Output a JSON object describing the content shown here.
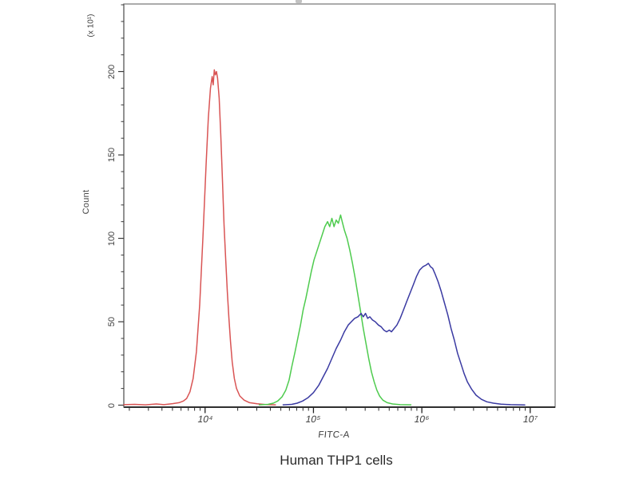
{
  "figure_caption": "Human THP1 cells",
  "chart_data": {
    "type": "line",
    "subtype": "flow-cytometry-histogram-overlay",
    "title": "Human THP1 cells",
    "xlabel": "FITC-A",
    "ylabel": "Count",
    "y_axis_multiplier": "(x 10¹)",
    "x_scale": "log10",
    "x_range_log10": [
      3.25,
      7.23
    ],
    "y_range": [
      0,
      240
    ],
    "grid": false,
    "legend": "none",
    "frame_color": "#8f8f8f",
    "axis_color": "#1a1a1a",
    "x_tick_labels": [
      "10⁴",
      "10⁵",
      "10⁶",
      "10⁷"
    ],
    "x_tick_log10_values": [
      4,
      5,
      6,
      7
    ],
    "x_minor_tick_multiples": [
      2,
      3,
      4,
      5,
      6,
      7,
      8,
      9
    ],
    "y_tick_labels": [
      "0",
      "50",
      "100",
      "150",
      "200"
    ],
    "y_tick_values": [
      0,
      50,
      100,
      150,
      200
    ],
    "y_minor_tick_step": 10,
    "series": [
      {
        "name": "red-histogram",
        "color": "#d95454",
        "peak_log10_x": 4.1,
        "peak_count": 200,
        "points": [
          [
            3.25,
            0.3
          ],
          [
            3.35,
            0.5
          ],
          [
            3.45,
            0.2
          ],
          [
            3.55,
            0.7
          ],
          [
            3.62,
            0.3
          ],
          [
            3.7,
            0.9
          ],
          [
            3.76,
            1.5
          ],
          [
            3.8,
            2.5
          ],
          [
            3.83,
            4
          ],
          [
            3.86,
            8
          ],
          [
            3.89,
            16
          ],
          [
            3.92,
            32
          ],
          [
            3.95,
            60
          ],
          [
            3.98,
            100
          ],
          [
            4.01,
            145
          ],
          [
            4.03,
            172
          ],
          [
            4.05,
            190
          ],
          [
            4.065,
            197
          ],
          [
            4.075,
            192
          ],
          [
            4.085,
            201
          ],
          [
            4.095,
            198
          ],
          [
            4.105,
            200
          ],
          [
            4.115,
            196
          ],
          [
            4.13,
            184
          ],
          [
            4.145,
            162
          ],
          [
            4.16,
            135
          ],
          [
            4.175,
            108
          ],
          [
            4.19,
            88
          ],
          [
            4.205,
            68
          ],
          [
            4.22,
            52
          ],
          [
            4.235,
            38
          ],
          [
            4.25,
            26
          ],
          [
            4.27,
            16
          ],
          [
            4.29,
            10
          ],
          [
            4.32,
            5.5
          ],
          [
            4.36,
            3
          ],
          [
            4.41,
            1.5
          ],
          [
            4.48,
            0.8
          ],
          [
            4.56,
            0.4
          ],
          [
            4.65,
            0.2
          ]
        ]
      },
      {
        "name": "green-histogram",
        "color": "#4ecb4e",
        "peak_log10_x": 5.25,
        "peak_count": 114,
        "points": [
          [
            4.5,
            0.2
          ],
          [
            4.58,
            0.5
          ],
          [
            4.63,
            1.2
          ],
          [
            4.67,
            2.5
          ],
          [
            4.71,
            5
          ],
          [
            4.745,
            9
          ],
          [
            4.775,
            15
          ],
          [
            4.8,
            23
          ],
          [
            4.83,
            32
          ],
          [
            4.855,
            40
          ],
          [
            4.88,
            48
          ],
          [
            4.905,
            57
          ],
          [
            4.93,
            64
          ],
          [
            4.955,
            72
          ],
          [
            4.98,
            80
          ],
          [
            5.005,
            87
          ],
          [
            5.03,
            92
          ],
          [
            5.055,
            97
          ],
          [
            5.08,
            102
          ],
          [
            5.105,
            107
          ],
          [
            5.13,
            110
          ],
          [
            5.15,
            107
          ],
          [
            5.17,
            112
          ],
          [
            5.19,
            107
          ],
          [
            5.21,
            111
          ],
          [
            5.23,
            109
          ],
          [
            5.25,
            114
          ],
          [
            5.265,
            110
          ],
          [
            5.285,
            105
          ],
          [
            5.31,
            100
          ],
          [
            5.335,
            93
          ],
          [
            5.36,
            85
          ],
          [
            5.385,
            76
          ],
          [
            5.41,
            66
          ],
          [
            5.435,
            56
          ],
          [
            5.46,
            46
          ],
          [
            5.485,
            37
          ],
          [
            5.51,
            28
          ],
          [
            5.535,
            20
          ],
          [
            5.56,
            14
          ],
          [
            5.585,
            9
          ],
          [
            5.61,
            5.5
          ],
          [
            5.64,
            3
          ],
          [
            5.68,
            1.5
          ],
          [
            5.73,
            0.7
          ],
          [
            5.8,
            0.3
          ],
          [
            5.9,
            0.2
          ]
        ]
      },
      {
        "name": "blue-histogram",
        "color": "#3a3aa2",
        "peak_log10_x": 6.06,
        "peak_count": 85,
        "points": [
          [
            4.72,
            0.2
          ],
          [
            4.8,
            0.5
          ],
          [
            4.85,
            1.2
          ],
          [
            4.9,
            2.5
          ],
          [
            4.95,
            4.5
          ],
          [
            5.0,
            7.5
          ],
          [
            5.05,
            12
          ],
          [
            5.09,
            17
          ],
          [
            5.13,
            22
          ],
          [
            5.17,
            28
          ],
          [
            5.21,
            34
          ],
          [
            5.25,
            39
          ],
          [
            5.285,
            44
          ],
          [
            5.32,
            48
          ],
          [
            5.35,
            50
          ],
          [
            5.38,
            52
          ],
          [
            5.41,
            53
          ],
          [
            5.44,
            55
          ],
          [
            5.46,
            53
          ],
          [
            5.48,
            55
          ],
          [
            5.5,
            52
          ],
          [
            5.52,
            53
          ],
          [
            5.545,
            51
          ],
          [
            5.57,
            50
          ],
          [
            5.6,
            48
          ],
          [
            5.625,
            47
          ],
          [
            5.65,
            45
          ],
          [
            5.675,
            44
          ],
          [
            5.7,
            45
          ],
          [
            5.72,
            44
          ],
          [
            5.745,
            46
          ],
          [
            5.77,
            48
          ],
          [
            5.8,
            52
          ],
          [
            5.83,
            57
          ],
          [
            5.86,
            62
          ],
          [
            5.89,
            67
          ],
          [
            5.92,
            72
          ],
          [
            5.95,
            77
          ],
          [
            5.98,
            81
          ],
          [
            6.01,
            83
          ],
          [
            6.04,
            84
          ],
          [
            6.06,
            85
          ],
          [
            6.08,
            83
          ],
          [
            6.1,
            82
          ],
          [
            6.12,
            79
          ],
          [
            6.15,
            74
          ],
          [
            6.18,
            68
          ],
          [
            6.21,
            61
          ],
          [
            6.24,
            54
          ],
          [
            6.27,
            46
          ],
          [
            6.3,
            39
          ],
          [
            6.33,
            31
          ],
          [
            6.36,
            25
          ],
          [
            6.39,
            19
          ],
          [
            6.42,
            14
          ],
          [
            6.46,
            9.5
          ],
          [
            6.5,
            6
          ],
          [
            6.55,
            3.5
          ],
          [
            6.6,
            2
          ],
          [
            6.66,
            1.2
          ],
          [
            6.73,
            0.6
          ],
          [
            6.82,
            0.3
          ],
          [
            6.95,
            0.1
          ]
        ]
      }
    ]
  }
}
